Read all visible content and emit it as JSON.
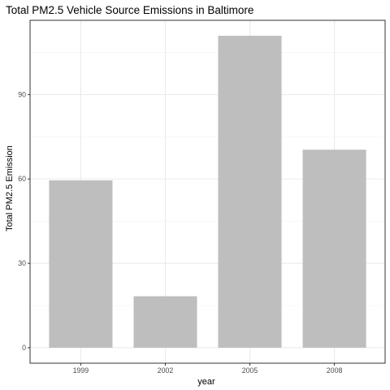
{
  "chart_data": {
    "type": "bar",
    "title": "Total PM2.5 Vehicle Source Emissions in Baltimore",
    "xlabel": "year",
    "ylabel": "Total PM2.5 Emission",
    "categories": [
      "1999",
      "2002",
      "2005",
      "2008"
    ],
    "values": [
      59.5,
      18.3,
      110.9,
      70.4
    ],
    "ylim": [
      -5.5,
      116.4
    ],
    "yticks": [
      0,
      30,
      60,
      90
    ],
    "ytick_labels": [
      "0",
      "30",
      "60",
      "90"
    ],
    "grid": true,
    "legend": "none",
    "colors": {
      "bar": "#bebebe",
      "grid_major": "#ebebeb",
      "grid_minor": "#f2f2f2",
      "panel_border": "#333333",
      "tick_text": "#4d4d4d"
    }
  }
}
